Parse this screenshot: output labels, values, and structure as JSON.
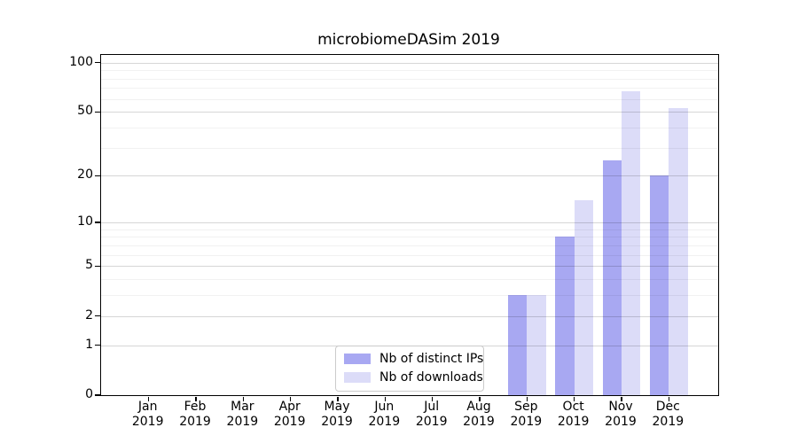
{
  "title": "microbiomeDASim 2019",
  "chart_data": {
    "type": "bar",
    "title": "microbiomeDASim 2019",
    "categories": [
      "Jan",
      "Feb",
      "Mar",
      "Apr",
      "May",
      "Jun",
      "Jul",
      "Aug",
      "Sep",
      "Oct",
      "Nov",
      "Dec"
    ],
    "year_label": "2019",
    "series": [
      {
        "name": "Nb of distinct IPs",
        "color": "#a8a8f2",
        "values": [
          0,
          0,
          0,
          0,
          0,
          0,
          0,
          0,
          3,
          8,
          25,
          20
        ]
      },
      {
        "name": "Nb of downloads",
        "color": "#dcdcf8",
        "values": [
          0,
          0,
          0,
          0,
          0,
          0,
          0,
          0,
          3,
          14,
          67,
          53
        ]
      }
    ],
    "yscale": "log1p",
    "ylim": [
      0,
      110
    ],
    "y_major_ticks": [
      0,
      1,
      2,
      5,
      10,
      20,
      50,
      100
    ],
    "y_minor_gridlines": [
      3,
      4,
      6,
      7,
      8,
      9,
      30,
      40,
      60,
      70,
      80,
      90
    ],
    "grid": "horizontal",
    "legend_position": "lower center"
  }
}
